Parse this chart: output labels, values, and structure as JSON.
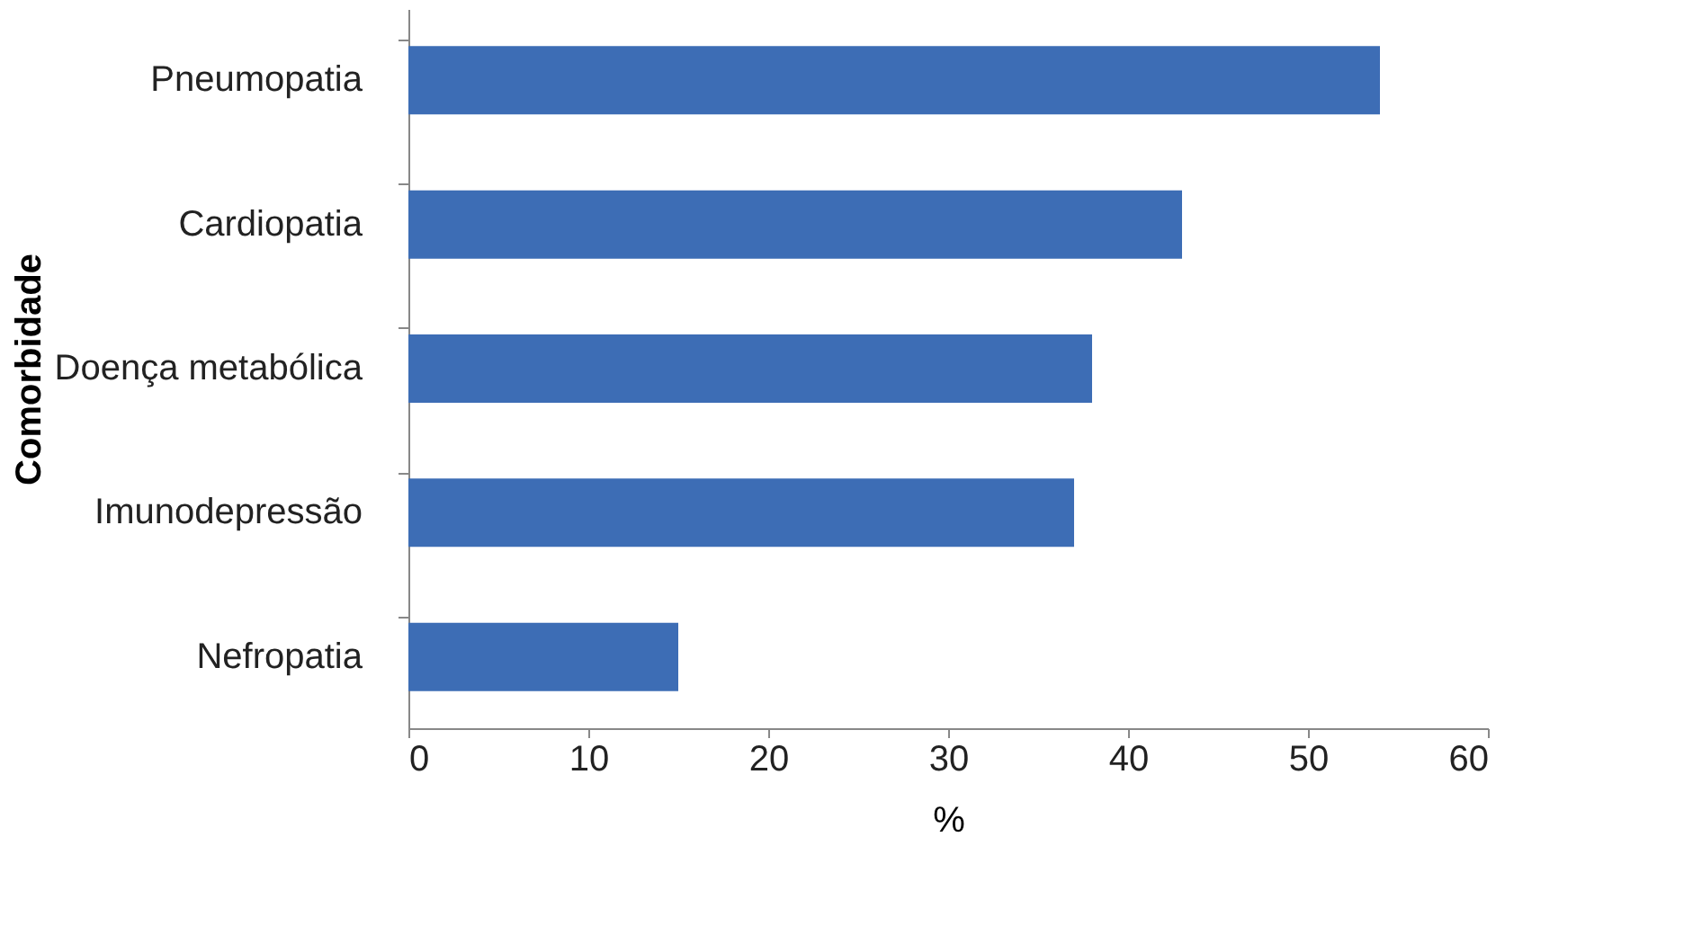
{
  "chart_data": {
    "type": "bar",
    "orientation": "horizontal",
    "categories": [
      "Pneumopatia",
      "Cardiopatia",
      "Doença metabólica",
      "Imunodepressão",
      "Nefropatia"
    ],
    "values": [
      54,
      43,
      38,
      37,
      15
    ],
    "color": "#3d6db5",
    "xlim": [
      0,
      60
    ],
    "xticks": [
      0,
      10,
      20,
      30,
      40,
      50,
      60
    ],
    "xlabel": "%",
    "ylabel": "Comorbidade",
    "grid": false
  }
}
